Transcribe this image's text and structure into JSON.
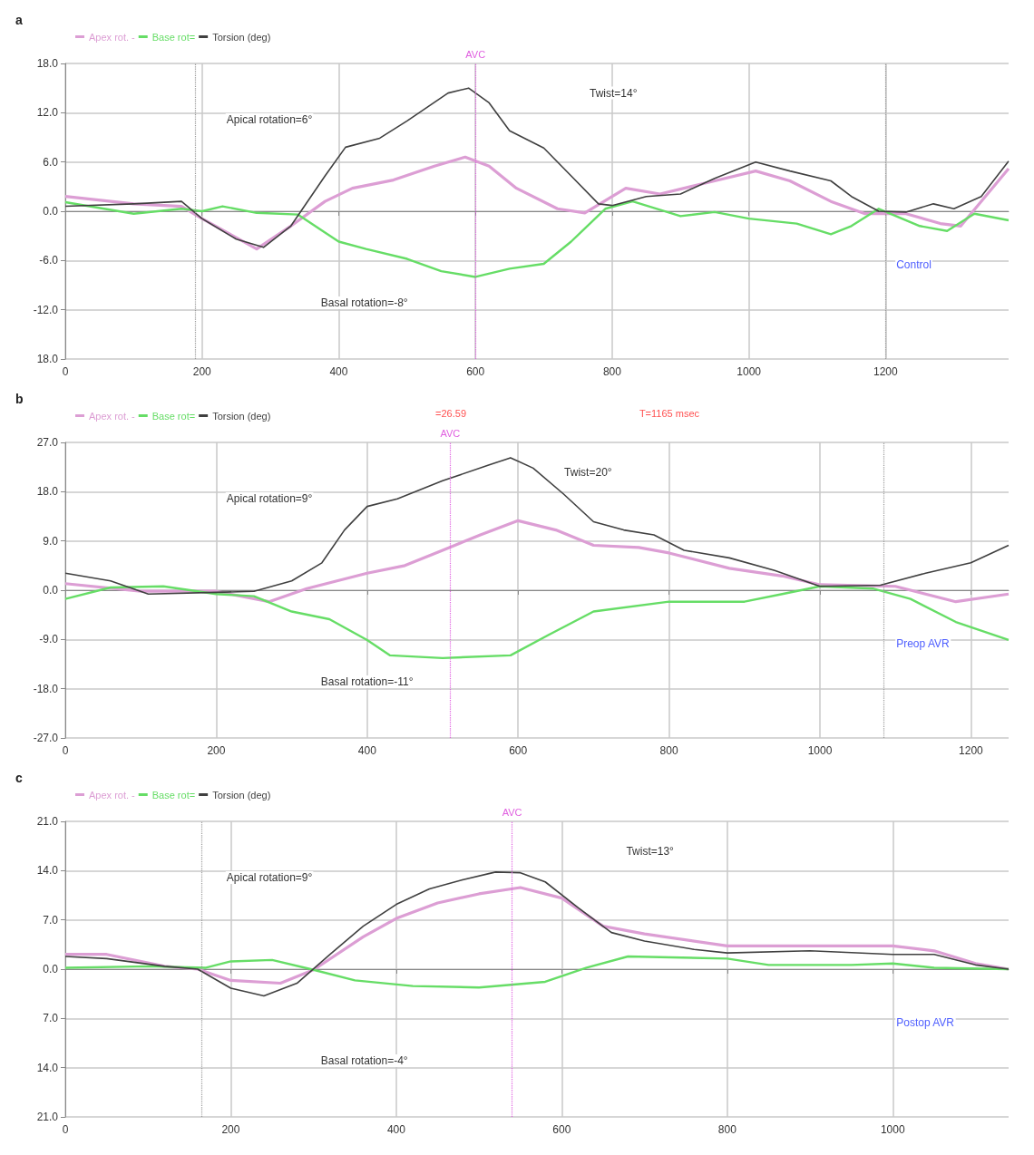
{
  "chart_data": [
    {
      "type": "line",
      "title": "a",
      "legend": "top left",
      "grid": true,
      "marker": "none",
      "line_style": "solid",
      "xlim": [
        0,
        1380
      ],
      "xticks": [
        0,
        200,
        400,
        600,
        800,
        1000,
        1200
      ],
      "ylim": [
        -18,
        18
      ],
      "yticks": [
        {
          "value": -18,
          "label": "18.0"
        },
        {
          "value": -12,
          "label": "-12.0"
        },
        {
          "value": -6,
          "label": "-6.0"
        },
        {
          "value": 0,
          "label": "0.0"
        },
        {
          "value": 6,
          "label": "6.0"
        },
        {
          "value": 12,
          "label": "12.0"
        },
        {
          "value": 18,
          "label": "18.0"
        }
      ],
      "series": [
        {
          "name": "Apex rot. -",
          "color": "#dc9ed4",
          "x": [
            0,
            100,
            170,
            200,
            280,
            330,
            380,
            420,
            480,
            540,
            585,
            620,
            660,
            720,
            760,
            820,
            870,
            950,
            1010,
            1060,
            1120,
            1170,
            1230,
            1280,
            1310,
            1380
          ],
          "values": [
            1.8,
            0.9,
            0.6,
            -0.9,
            -4.6,
            -1.8,
            1.2,
            2.8,
            3.8,
            5.5,
            6.6,
            5.5,
            2.8,
            0.3,
            -0.2,
            2.8,
            2.1,
            3.7,
            4.9,
            3.7,
            1.2,
            -0.3,
            -0.3,
            -1.5,
            -1.8,
            5.2
          ]
        },
        {
          "name": "Base rot=",
          "color": "#66dd66",
          "x": [
            0,
            100,
            170,
            200,
            230,
            280,
            340,
            400,
            440,
            500,
            550,
            600,
            650,
            700,
            740,
            790,
            830,
            900,
            950,
            1000,
            1070,
            1120,
            1150,
            1190,
            1250,
            1290,
            1330,
            1380
          ],
          "values": [
            1.1,
            -0.3,
            0.3,
            0,
            0.6,
            -0.2,
            -0.4,
            -3.7,
            -4.6,
            -5.8,
            -7.3,
            -8,
            -7,
            -6.4,
            -3.7,
            0.3,
            1.2,
            -0.6,
            -0.1,
            -0.9,
            -1.5,
            -2.8,
            -1.8,
            0.3,
            -1.8,
            -2.4,
            -0.3,
            -1.1
          ]
        },
        {
          "name": "Torsion (deg)",
          "color": "#404040",
          "x": [
            0,
            100,
            170,
            200,
            250,
            290,
            330,
            380,
            410,
            460,
            500,
            560,
            590,
            620,
            650,
            700,
            740,
            780,
            800,
            850,
            900,
            950,
            1010,
            1060,
            1120,
            1150,
            1190,
            1230,
            1270,
            1300,
            1340,
            1380
          ],
          "values": [
            0.6,
            0.9,
            1.2,
            -0.9,
            -3.4,
            -4.4,
            -1.8,
            4.3,
            7.8,
            8.9,
            11,
            14.4,
            15,
            13.2,
            9.8,
            7.7,
            4.3,
            0.9,
            0.7,
            1.8,
            2.1,
            4,
            6,
            4.9,
            3.7,
            1.8,
            0,
            -0.1,
            0.9,
            0.3,
            1.8,
            6.1
          ]
        }
      ],
      "ref_lines": [
        {
          "axis": "x",
          "value": 600,
          "label": "AVC",
          "color": "#e060e0",
          "line_style": "dotted"
        },
        {
          "axis": "x",
          "value": 190,
          "label": null,
          "color": "#999999",
          "line_style": "dotted"
        },
        {
          "axis": "x",
          "value": 1200,
          "label": null,
          "color": "#999999",
          "line_style": "dotted"
        }
      ],
      "annotations": [
        "Twist=14°",
        "Apical rotation=6°",
        "Basal rotation=-8°",
        "Control"
      ]
    },
    {
      "type": "line",
      "title": "b",
      "legend": "top left",
      "grid": true,
      "marker": "none",
      "line_style": "solid",
      "xlim": [
        0,
        1250
      ],
      "xticks": [
        0,
        200,
        400,
        600,
        800,
        1000,
        1200
      ],
      "ylim": [
        -27,
        27
      ],
      "yticks": [
        {
          "value": -27,
          "label": "-27.0"
        },
        {
          "value": -18,
          "label": "-18.0"
        },
        {
          "value": -9,
          "label": "-9.0"
        },
        {
          "value": 0,
          "label": "0.0"
        },
        {
          "value": 9,
          "label": "9.0"
        },
        {
          "value": 18,
          "label": "18.0"
        },
        {
          "value": 27,
          "label": "27.0"
        }
      ],
      "series": [
        {
          "name": "Apex rot. -",
          "color": "#dc9ed4",
          "x": [
            0,
            100,
            200,
            270,
            320,
            400,
            450,
            500,
            550,
            600,
            650,
            700,
            760,
            800,
            880,
            950,
            1000,
            1100,
            1180,
            1250
          ],
          "values": [
            1.2,
            -0.2,
            -0.2,
            -2.1,
            0.3,
            3.1,
            4.5,
            7.3,
            10.1,
            12.7,
            11,
            8.2,
            7.8,
            6.8,
            4,
            2.6,
            1,
            0.7,
            -2.1,
            -0.7
          ]
        },
        {
          "name": "Base rot=",
          "color": "#66dd66",
          "x": [
            0,
            60,
            130,
            200,
            250,
            300,
            350,
            400,
            430,
            500,
            590,
            640,
            700,
            800,
            900,
            950,
            1000,
            1070,
            1120,
            1180,
            1250
          ],
          "values": [
            -1.6,
            0.5,
            0.7,
            -0.7,
            -1.1,
            -3.9,
            -5.3,
            -9.1,
            -11.9,
            -12.4,
            -11.9,
            -8.2,
            -3.9,
            -2.1,
            -2.1,
            -0.7,
            0.7,
            0.3,
            -1.6,
            -5.8,
            -9.1
          ]
        },
        {
          "name": "Torsion (deg)",
          "color": "#404040",
          "x": [
            0,
            60,
            110,
            200,
            250,
            300,
            340,
            370,
            400,
            440,
            500,
            560,
            590,
            620,
            660,
            700,
            740,
            780,
            820,
            880,
            940,
            1000,
            1080,
            1140,
            1200,
            1250
          ],
          "values": [
            3.1,
            1.7,
            -0.7,
            -0.4,
            -0.2,
            1.7,
            5,
            11,
            15.3,
            16.7,
            20,
            22.8,
            24.2,
            22.3,
            17.6,
            12.5,
            11,
            10.1,
            7.3,
            5.9,
            3.6,
            0.7,
            0.9,
            3.1,
            5,
            8.2
          ]
        }
      ],
      "ref_lines": [
        {
          "axis": "x",
          "value": 510,
          "label": "AVC",
          "color": "#e060e0",
          "line_style": "dotted"
        },
        {
          "axis": "x",
          "value": 1085,
          "label": null,
          "color": "#999999",
          "line_style": "dotted"
        }
      ],
      "annotations": [
        "=26.59",
        "T=1165 msec",
        "Twist=20°",
        "Apical rotation=9°",
        "Basal rotation=-11°",
        "Preop AVR"
      ]
    },
    {
      "type": "line",
      "title": "c",
      "legend": "top left",
      "grid": true,
      "marker": "none",
      "line_style": "solid",
      "xlim": [
        0,
        1140
      ],
      "xticks": [
        0,
        200,
        400,
        600,
        800,
        1000
      ],
      "ylim": [
        -21,
        21
      ],
      "yticks": [
        {
          "value": -21,
          "label": "21.0"
        },
        {
          "value": -14,
          "label": "14.0"
        },
        {
          "value": -7,
          "label": "7.0"
        },
        {
          "value": 0,
          "label": "0.0"
        },
        {
          "value": 7,
          "label": "7.0"
        },
        {
          "value": 14,
          "label": "14.0"
        },
        {
          "value": 21,
          "label": "21.0"
        }
      ],
      "series": [
        {
          "name": "Apex rot. -",
          "color": "#dc9ed4",
          "x": [
            0,
            50,
            120,
            160,
            200,
            260,
            300,
            360,
            400,
            450,
            500,
            550,
            600,
            650,
            700,
            800,
            900,
            1000,
            1050,
            1100,
            1140
          ],
          "values": [
            2.1,
            2.1,
            0.4,
            0,
            -1.6,
            -2,
            -0.1,
            4.6,
            7.2,
            9.4,
            10.7,
            11.6,
            10.1,
            6.1,
            5,
            3.3,
            3.3,
            3.3,
            2.6,
            0.8,
            0
          ]
        },
        {
          "name": "Base rot=",
          "color": "#66dd66",
          "x": [
            0,
            100,
            170,
            200,
            250,
            300,
            350,
            420,
            500,
            580,
            630,
            680,
            800,
            850,
            950,
            1000,
            1050,
            1140
          ],
          "values": [
            0.2,
            0.4,
            0.2,
            1.1,
            1.3,
            -0.1,
            -1.6,
            -2.4,
            -2.6,
            -1.8,
            0.2,
            1.8,
            1.5,
            0.6,
            0.6,
            0.8,
            0.2,
            0
          ]
        },
        {
          "name": "Torsion (deg)",
          "color": "#404040",
          "x": [
            0,
            50,
            120,
            160,
            200,
            240,
            280,
            320,
            360,
            400,
            440,
            480,
            520,
            550,
            580,
            620,
            660,
            700,
            760,
            800,
            900,
            1000,
            1050,
            1100,
            1140
          ],
          "values": [
            1.8,
            1.5,
            0.4,
            0,
            -2.7,
            -3.8,
            -2,
            2.1,
            6.1,
            9.2,
            11.4,
            12.7,
            13.8,
            13.7,
            12.4,
            8.7,
            5.2,
            4,
            2.8,
            2.3,
            2.6,
            2.1,
            2.1,
            0.6,
            0
          ]
        }
      ],
      "ref_lines": [
        {
          "axis": "x",
          "value": 540,
          "label": "AVC",
          "color": "#e060e0",
          "line_style": "dotted"
        },
        {
          "axis": "x",
          "value": 165,
          "label": null,
          "color": "#999999",
          "line_style": "dotted"
        }
      ],
      "annotations": [
        "Twist=13°",
        "Apical rotation=9°",
        "Basal rotation=-4°",
        "Postop AVR"
      ]
    }
  ]
}
